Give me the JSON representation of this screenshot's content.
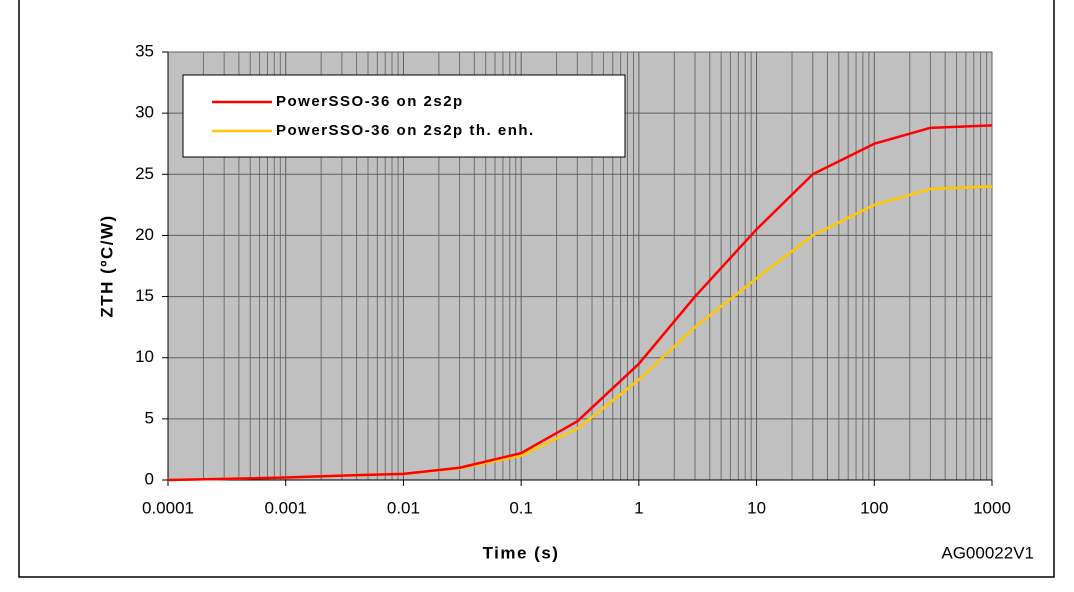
{
  "chart_data": {
    "type": "line",
    "x_label": "Time (s)",
    "y_label": "ZTH (ºC/W)",
    "annotation": "AG00022V1",
    "xscale": "log",
    "xlim": [
      0.0001,
      1000
    ],
    "xticks": [
      0.0001,
      0.001,
      0.01,
      0.1,
      1,
      10,
      100,
      1000
    ],
    "ylim": [
      0,
      35
    ],
    "yticks": [
      0,
      5,
      10,
      15,
      20,
      25,
      30,
      35
    ],
    "grid": true,
    "legend": "upper left",
    "x": [
      0.0001,
      0.001,
      0.004,
      0.01,
      0.03,
      0.1,
      0.3,
      1,
      3,
      10,
      30,
      100,
      300,
      1000
    ],
    "series": [
      {
        "name": "PowerSSO-36 on 2s2p",
        "color": "#ff0000",
        "values": [
          0,
          0.2,
          0.4,
          0.5,
          1.0,
          2.2,
          4.8,
          9.5,
          15,
          20.5,
          25,
          27.5,
          28.8,
          29
        ]
      },
      {
        "name": "PowerSSO-36 on 2s2p th. enh.",
        "color": "#ffc800",
        "values": [
          0,
          0.2,
          0.4,
          0.5,
          0.95,
          2.0,
          4.2,
          8.2,
          12.5,
          16.5,
          20,
          22.5,
          23.8,
          24
        ]
      }
    ]
  }
}
